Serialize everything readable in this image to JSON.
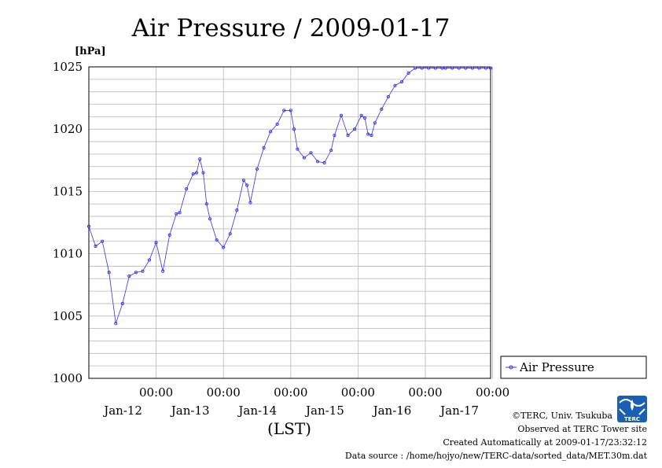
{
  "colors": {
    "series": "#3333ee",
    "grid": "#b8b8b8",
    "axis": "#000000",
    "logo": "#1a5fb4"
  },
  "chart_data": {
    "type": "line",
    "title": "Air Pressure / 2009-01-17",
    "ylabel": "[hPa]",
    "xlabel": "(LST)",
    "ylim": [
      1000,
      1025
    ],
    "y_ticks": [
      "1000",
      "1005",
      "1010",
      "1015",
      "1020",
      "1025"
    ],
    "x_tick_time_label": "00:00",
    "x_tick_dates": [
      "Jan-12",
      "Jan-13",
      "Jan-14",
      "Jan-15",
      "Jan-16",
      "Jan-17"
    ],
    "x_range_days": [
      -1,
      4.97
    ],
    "grid": true,
    "legend_position": "right",
    "series": [
      {
        "name": "Air Pressure",
        "x_days": [
          -1.0,
          -0.9,
          -0.8,
          -0.7,
          -0.6,
          -0.5,
          -0.4,
          -0.3,
          -0.2,
          -0.1,
          0.0,
          0.1,
          0.2,
          0.3,
          0.35,
          0.45,
          0.55,
          0.6,
          0.65,
          0.7,
          0.75,
          0.8,
          0.9,
          1.0,
          1.1,
          1.2,
          1.3,
          1.35,
          1.4,
          1.5,
          1.6,
          1.7,
          1.8,
          1.9,
          2.0,
          2.05,
          2.1,
          2.2,
          2.3,
          2.4,
          2.5,
          2.6,
          2.65,
          2.75,
          2.85,
          2.95,
          3.05,
          3.1,
          3.15,
          3.2,
          3.25,
          3.35,
          3.45,
          3.55,
          3.65,
          3.75,
          3.85,
          3.95,
          4.05,
          4.15,
          4.25,
          4.3,
          4.4,
          4.5,
          4.6,
          4.7,
          4.8,
          4.9,
          4.97
        ],
        "values": [
          1012.2,
          1010.6,
          1011.0,
          1008.5,
          1004.4,
          1006.0,
          1008.2,
          1008.5,
          1008.6,
          1009.5,
          1010.9,
          1008.6,
          1011.5,
          1013.2,
          1013.3,
          1015.2,
          1016.4,
          1016.5,
          1017.6,
          1016.5,
          1014.0,
          1012.8,
          1011.1,
          1010.5,
          1011.6,
          1013.5,
          1015.9,
          1015.5,
          1014.1,
          1016.8,
          1018.5,
          1019.8,
          1020.4,
          1021.5,
          1021.5,
          1020.0,
          1018.4,
          1017.7,
          1018.1,
          1017.4,
          1017.3,
          1018.3,
          1019.5,
          1021.1,
          1019.5,
          1020.0,
          1021.1,
          1020.9,
          1019.6,
          1019.5,
          1020.5,
          1021.6,
          1022.6,
          1023.5,
          1023.8,
          1024.5,
          1024.9,
          1024.9,
          1024.9,
          1024.9,
          1024.9,
          1024.9,
          1024.9,
          1024.9,
          1024.9,
          1024.9,
          1024.9,
          1024.9,
          1024.9
        ]
      }
    ]
  },
  "footer": {
    "copyright": "©TERC, Univ. Tsukuba",
    "observed": "Observed at TERC Tower site",
    "created": "Created Automatically at 2009-01-17/23:32:12",
    "source": "Data source : /home/hojyo/new/TERC-data/sorted_data/MET.30m.dat"
  },
  "logo": {
    "text": "TERC"
  }
}
